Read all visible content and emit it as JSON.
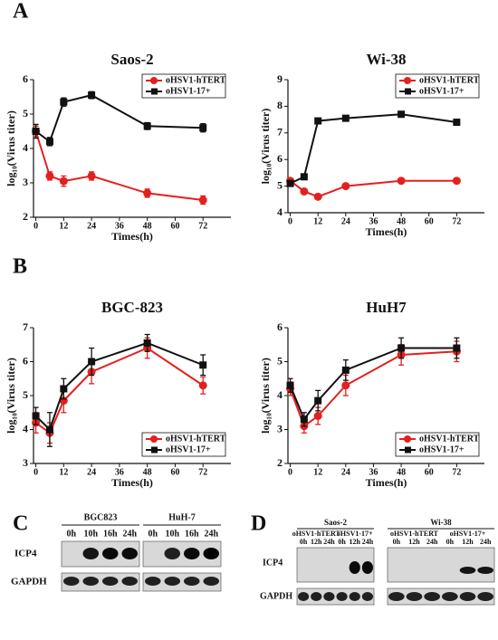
{
  "panels": [
    "A",
    "B",
    "C",
    "D"
  ],
  "chart_data": [
    {
      "type": "line",
      "title": "Saos-2",
      "xlabel": "Times(h)",
      "ylabel": "log₁₀(Virus titer)",
      "x": [
        0,
        6,
        12,
        24,
        48,
        72
      ],
      "xlim": [
        -1,
        84
      ],
      "xticks": [
        0,
        12,
        24,
        36,
        48,
        60,
        72
      ],
      "ylim": [
        2,
        6
      ],
      "yticks": [
        2,
        3,
        4,
        5,
        6
      ],
      "legend": "upper right",
      "series": [
        {
          "name": "oHSV1-hTERT",
          "color": "#e3201e",
          "marker": "circle",
          "values": [
            4.5,
            3.2,
            3.05,
            3.2,
            2.7,
            2.5
          ],
          "errors": [
            0.15,
            0.12,
            0.15,
            0.12,
            0.12,
            0.12
          ]
        },
        {
          "name": "oHSV1-17+",
          "color": "#111111",
          "marker": "square",
          "values": [
            4.5,
            4.2,
            5.35,
            5.55,
            4.65,
            4.6
          ],
          "errors": [
            0.2,
            0.12,
            0.12,
            0.1,
            0.1,
            0.12
          ]
        }
      ]
    },
    {
      "type": "line",
      "title": "Wi-38",
      "xlabel": "Times(h)",
      "ylabel": "log₁₀(Virus titer)",
      "x": [
        0,
        6,
        12,
        24,
        48,
        72
      ],
      "xlim": [
        -1,
        84
      ],
      "xticks": [
        0,
        12,
        24,
        36,
        48,
        60,
        72
      ],
      "ylim": [
        4,
        9
      ],
      "yticks": [
        4,
        5,
        6,
        7,
        8,
        9
      ],
      "legend": "upper right",
      "series": [
        {
          "name": "oHSV1-hTERT",
          "color": "#e3201e",
          "marker": "circle",
          "values": [
            5.2,
            4.8,
            4.6,
            5.0,
            5.2,
            5.2
          ],
          "errors": [
            0.08,
            0.08,
            0.08,
            0.08,
            0.08,
            0.08
          ]
        },
        {
          "name": "oHSV1-17+",
          "color": "#111111",
          "marker": "square",
          "values": [
            5.1,
            5.35,
            7.45,
            7.55,
            7.7,
            7.4
          ],
          "errors": [
            0.08,
            0.08,
            0.08,
            0.08,
            0.08,
            0.08
          ]
        }
      ]
    },
    {
      "type": "line",
      "title": "BGC-823",
      "xlabel": "Times(h)",
      "ylabel": "log₁₀(Virus titer)",
      "x": [
        0,
        6,
        12,
        24,
        48,
        72
      ],
      "xlim": [
        -1,
        84
      ],
      "xticks": [
        0,
        12,
        24,
        36,
        48,
        60,
        72
      ],
      "ylim": [
        3,
        7
      ],
      "yticks": [
        3,
        4,
        5,
        6,
        7
      ],
      "legend": "lower right",
      "series": [
        {
          "name": "oHSV1-hTERT",
          "color": "#e3201e",
          "marker": "circle",
          "values": [
            4.2,
            3.9,
            4.85,
            5.7,
            6.4,
            5.3
          ],
          "errors": [
            0.3,
            0.3,
            0.35,
            0.35,
            0.3,
            0.25
          ]
        },
        {
          "name": "oHSV1-17+",
          "color": "#111111",
          "marker": "square",
          "values": [
            4.4,
            4.0,
            5.2,
            6.0,
            6.55,
            5.9
          ],
          "errors": [
            0.25,
            0.5,
            0.3,
            0.4,
            0.25,
            0.3
          ]
        }
      ]
    },
    {
      "type": "line",
      "title": "HuH7",
      "xlabel": "Times(h)",
      "ylabel": "log₁₀(Virus titer)",
      "x": [
        0,
        6,
        12,
        24,
        48,
        72
      ],
      "xlim": [
        -1,
        84
      ],
      "xticks": [
        0,
        12,
        24,
        36,
        48,
        60,
        72
      ],
      "ylim": [
        2,
        6
      ],
      "yticks": [
        2,
        3,
        4,
        5,
        6
      ],
      "legend": "lower right",
      "series": [
        {
          "name": "oHSV1-hTERT",
          "color": "#e3201e",
          "marker": "circle",
          "values": [
            4.2,
            3.1,
            3.4,
            4.3,
            5.2,
            5.3
          ],
          "errors": [
            0.2,
            0.2,
            0.25,
            0.3,
            0.3,
            0.3
          ]
        },
        {
          "name": "oHSV1-17+",
          "color": "#111111",
          "marker": "square",
          "values": [
            4.3,
            3.3,
            3.85,
            4.75,
            5.4,
            5.4
          ],
          "errors": [
            0.2,
            0.2,
            0.3,
            0.3,
            0.3,
            0.3
          ]
        }
      ]
    }
  ],
  "blot_c": {
    "rows": [
      "ICP4",
      "GAPDH"
    ],
    "groups": [
      {
        "name": "BGC823",
        "lanes": [
          "0h",
          "10h",
          "16h",
          "24h"
        ]
      },
      {
        "name": "HuH-7",
        "lanes": [
          "0h",
          "10h",
          "16h",
          "24h"
        ]
      }
    ]
  },
  "blot_d": {
    "rows": [
      "ICP4",
      "GAPDH"
    ],
    "groups": [
      {
        "name": "Saos-2",
        "arms": [
          {
            "name": "oHSV1-hTERT",
            "lanes": [
              "0h",
              "12h",
              "24h"
            ]
          },
          {
            "name": "oHSV1-17+",
            "lanes": [
              "0h",
              "12h",
              "24h"
            ]
          }
        ]
      },
      {
        "name": "Wi-38",
        "arms": [
          {
            "name": "oHSV1-hTERT",
            "lanes": [
              "0h",
              "12h",
              "24h"
            ]
          },
          {
            "name": "oHSV1-17+",
            "lanes": [
              "0h",
              "12h",
              "24h"
            ]
          }
        ]
      }
    ]
  }
}
